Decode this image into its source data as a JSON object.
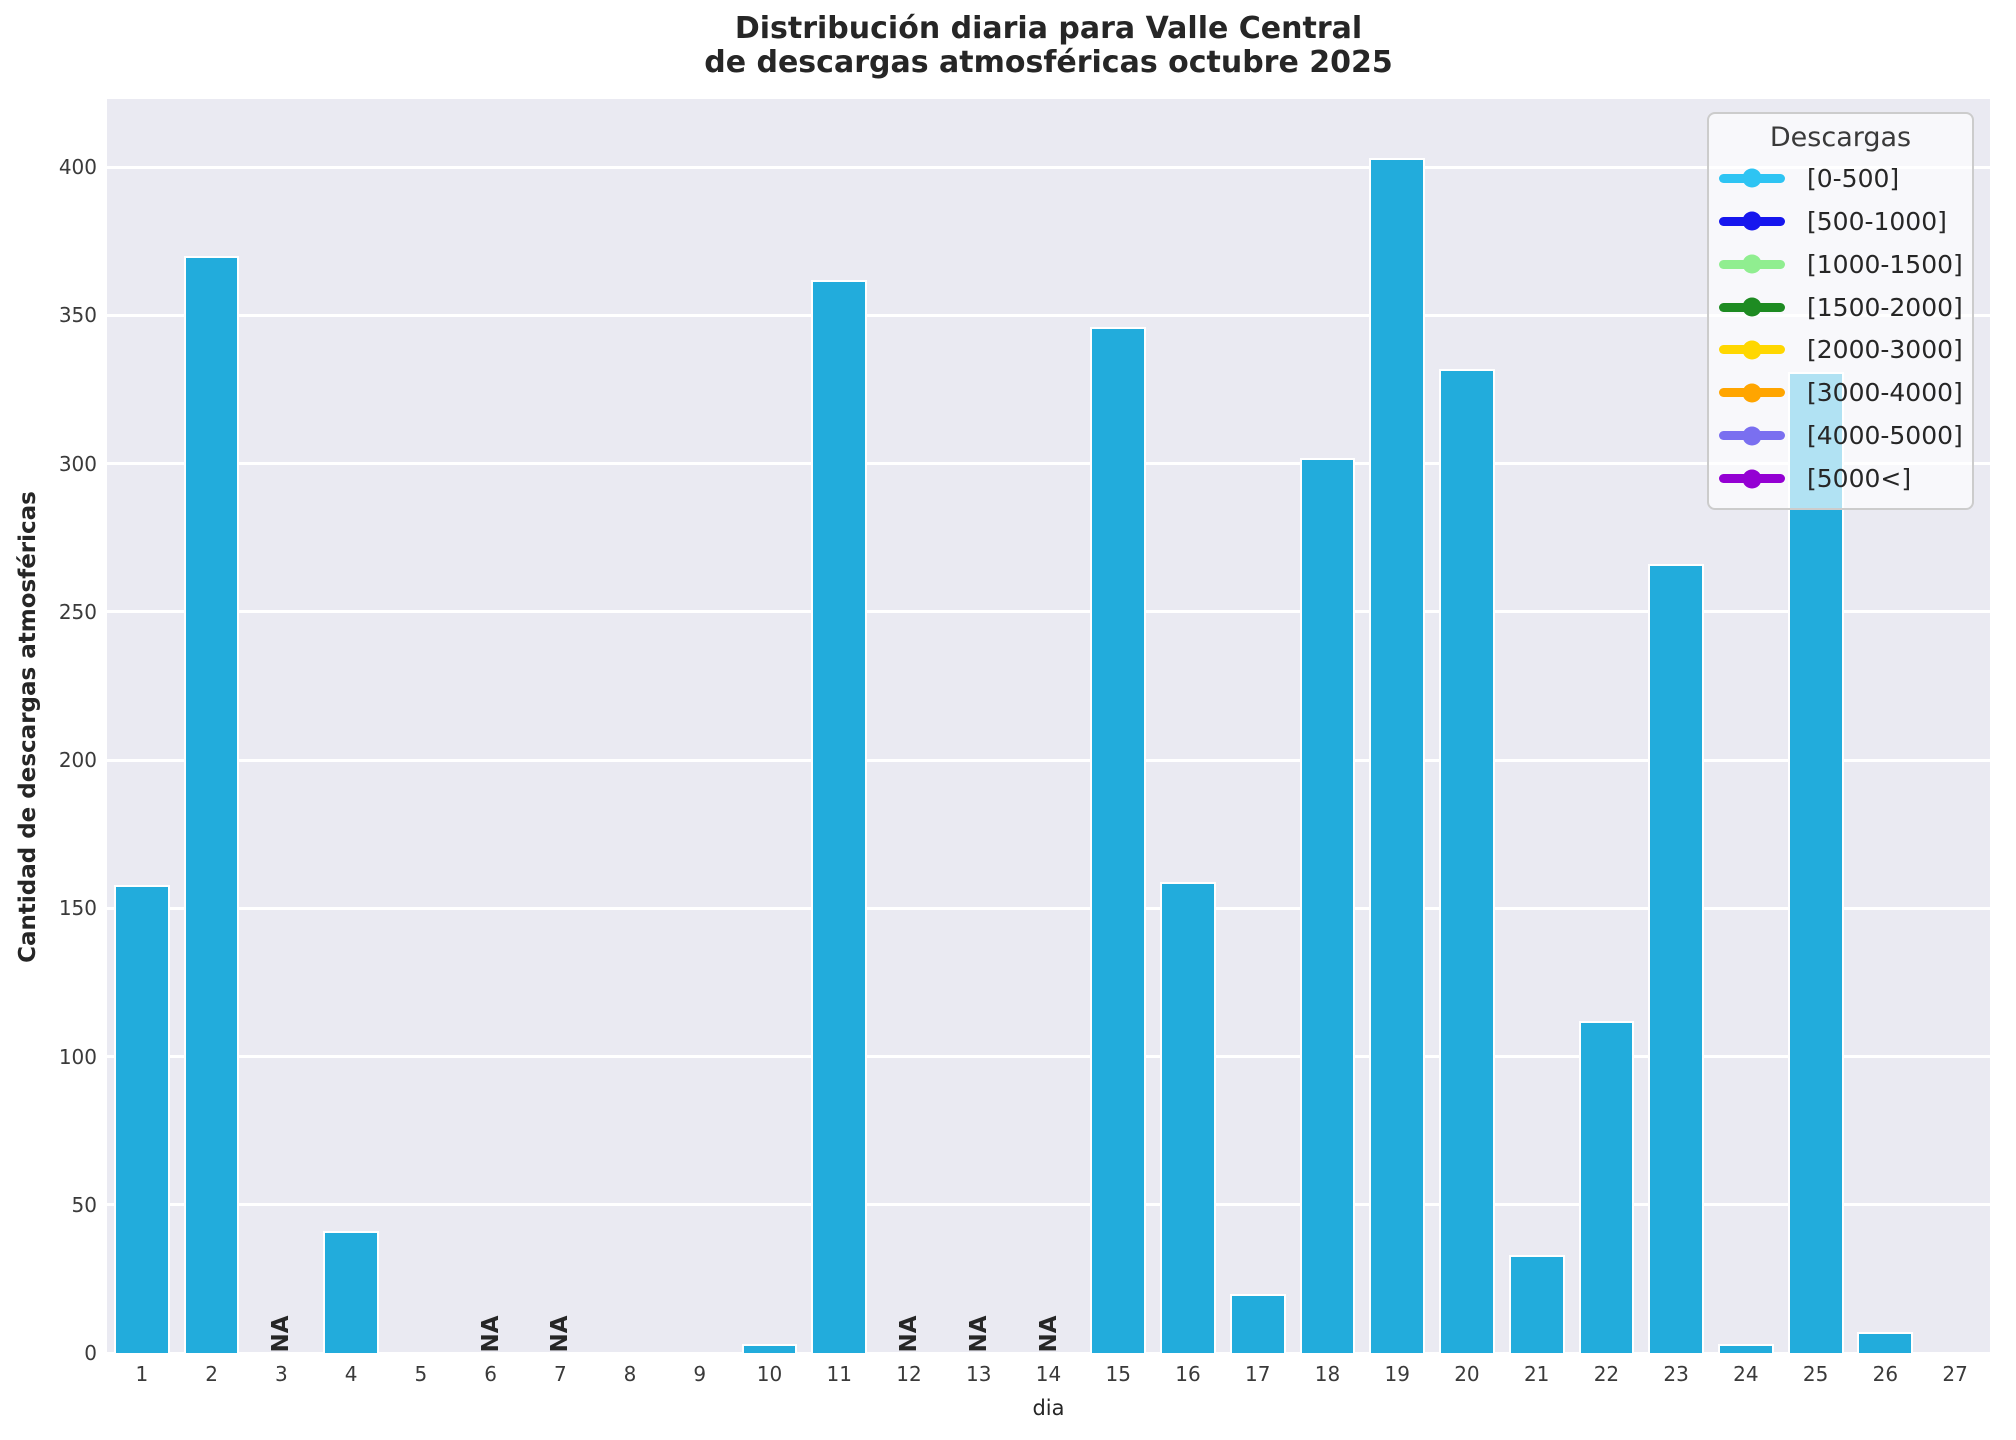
{
  "title": {
    "line1": "Distribución diaria para Valle Central",
    "line2": "de descargas atmosféricas octubre 2025"
  },
  "chart_data": {
    "type": "bar",
    "title": "Distribución diaria para Valle Central de descargas atmosféricas octubre 2025",
    "xlabel": "dia",
    "ylabel": "Cantidad de descargas atmosféricas",
    "categories": [
      1,
      2,
      3,
      4,
      5,
      6,
      7,
      8,
      9,
      10,
      11,
      12,
      13,
      14,
      15,
      16,
      17,
      18,
      19,
      20,
      21,
      22,
      23,
      24,
      25,
      26,
      27
    ],
    "values": [
      158,
      370,
      null,
      41,
      0,
      null,
      null,
      0,
      0,
      3,
      362,
      null,
      null,
      null,
      346,
      159,
      20,
      302,
      403,
      332,
      33,
      112,
      266,
      3,
      331,
      7,
      0
    ],
    "na_label": "NA",
    "na_days": [
      3,
      6,
      7,
      12,
      13,
      14
    ],
    "yticks": [
      0,
      50,
      100,
      150,
      200,
      250,
      300,
      350,
      400
    ],
    "ylim": [
      0,
      423
    ],
    "grid": "horizontal-white-on-gray",
    "plot_bg": "#EAEAF2",
    "bar_color": "#22ACDC",
    "bar_edge_color": "#ffffff",
    "legend": {
      "title": "Descargas",
      "position": "top-right",
      "items": [
        {
          "label": "[0-500]",
          "color": "#2EC4F3"
        },
        {
          "label": "[500-1000]",
          "color": "#1616EE"
        },
        {
          "label": "[1000-1500]",
          "color": "#90EE90"
        },
        {
          "label": "[1500-2000]",
          "color": "#1E8B22"
        },
        {
          "label": "[2000-3000]",
          "color": "#FFD700"
        },
        {
          "label": "[3000-4000]",
          "color": "#FFA500"
        },
        {
          "label": "[4000-5000]",
          "color": "#7A6FF0"
        },
        {
          "label": "[5000<]",
          "color": "#9400D3"
        }
      ]
    }
  }
}
